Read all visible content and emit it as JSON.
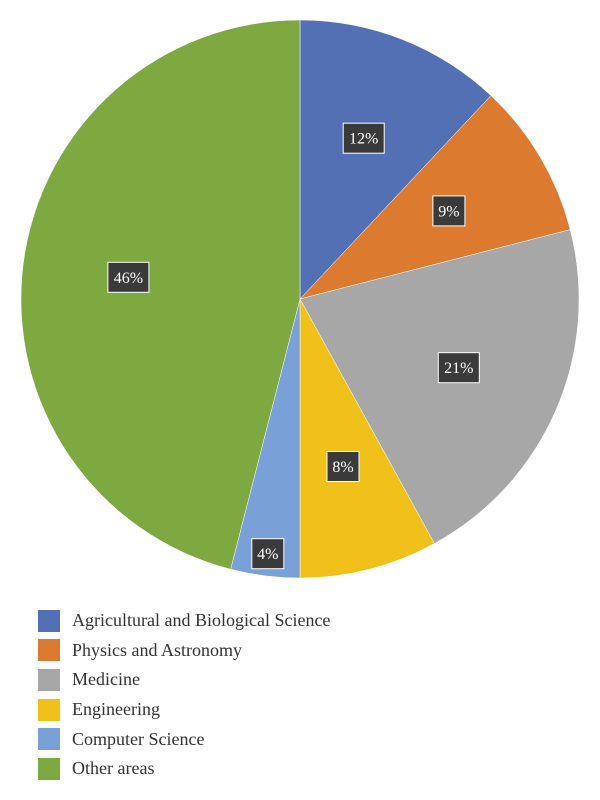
{
  "chart_data": {
    "type": "pie",
    "title": "",
    "categories": [
      "Agricultural and Biological Science",
      "Physics and Astronomy",
      "Medicine",
      "Engineering",
      "Computer Science",
      "Other areas"
    ],
    "values": [
      12,
      9,
      21,
      8,
      4,
      46
    ],
    "labels": [
      "12%",
      "9%",
      "21%",
      "8%",
      "4%",
      "46%"
    ],
    "colors": [
      "#5470b5",
      "#dc7a2f",
      "#a7a7a7",
      "#efc11a",
      "#7aa0d8",
      "#7ea840"
    ],
    "start_angle": "12 o'clock",
    "direction": "clockwise",
    "legend_position": "bottom-left",
    "label_style": "white text on dark boxes"
  }
}
